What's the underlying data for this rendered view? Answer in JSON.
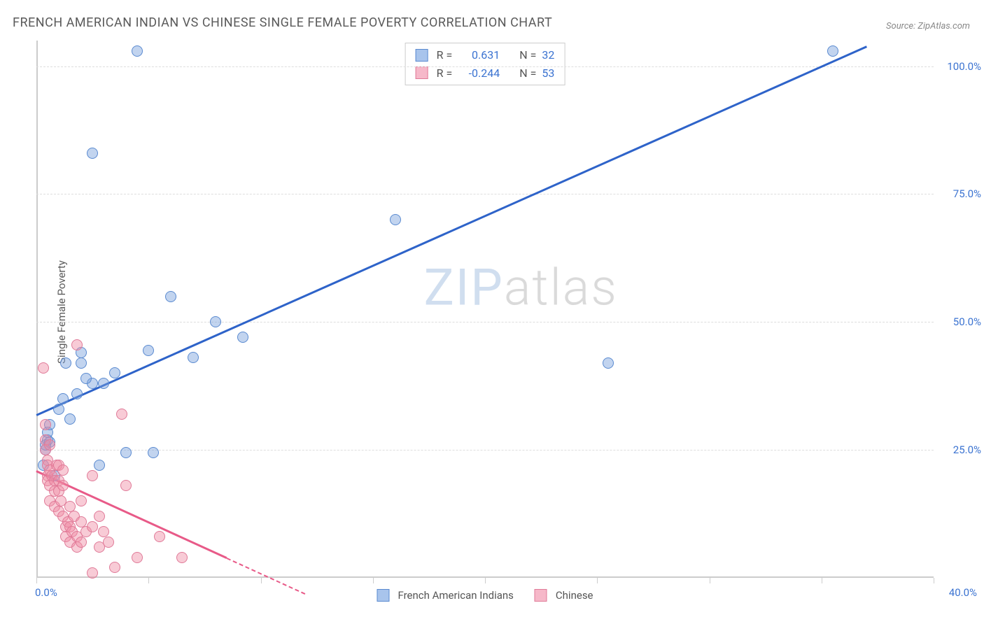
{
  "title": "FRENCH AMERICAN INDIAN VS CHINESE SINGLE FEMALE POVERTY CORRELATION CHART",
  "source": "Source: ZipAtlas.com",
  "ylabel": "Single Female Poverty",
  "watermark": {
    "zip": "ZIP",
    "atlas": "atlas"
  },
  "chart": {
    "type": "scatter",
    "background_color": "#ffffff",
    "axis_color": "#cccccc",
    "grid_color": "#dddddd",
    "xlim": [
      0,
      40
    ],
    "ylim": [
      0,
      105
    ],
    "xticks": [
      0,
      5,
      10,
      15,
      20,
      25,
      30,
      35,
      40
    ],
    "xtick_labels": {
      "left": "0.0%",
      "right": "40.0%"
    },
    "ytick_lines": [
      25,
      50,
      75,
      100
    ],
    "ytick_labels": [
      "25.0%",
      "50.0%",
      "75.0%",
      "100.0%"
    ],
    "tick_label_color": "#3b73d1",
    "tick_label_fontsize": 15,
    "marker_radius": 8,
    "marker_stroke_width": 1.5,
    "series": [
      {
        "name": "French American Indians",
        "fill_color": "rgba(120,160,220,0.45)",
        "stroke_color": "#5a8ad0",
        "swatch_fill": "#a8c4ec",
        "swatch_border": "#5a8ad0",
        "stats": {
          "R": "0.631",
          "N": "32"
        },
        "trend": {
          "x1": 0,
          "y1": 32,
          "x2": 37,
          "y2": 104,
          "color": "#2e63c9",
          "width": 2.5
        },
        "points": [
          [
            0.3,
            22
          ],
          [
            0.4,
            25
          ],
          [
            0.4,
            26
          ],
          [
            0.5,
            27
          ],
          [
            0.5,
            28.5
          ],
          [
            0.6,
            30
          ],
          [
            0.6,
            26.5
          ],
          [
            0.8,
            20
          ],
          [
            1.0,
            33
          ],
          [
            1.2,
            35
          ],
          [
            1.3,
            42
          ],
          [
            1.5,
            31
          ],
          [
            1.8,
            36
          ],
          [
            2.0,
            42
          ],
          [
            2.0,
            44
          ],
          [
            2.5,
            38
          ],
          [
            2.5,
            83
          ],
          [
            2.8,
            22
          ],
          [
            3.0,
            38
          ],
          [
            3.5,
            40
          ],
          [
            4.0,
            24.5
          ],
          [
            4.5,
            103
          ],
          [
            5.0,
            44.5
          ],
          [
            5.2,
            24.5
          ],
          [
            6.0,
            55
          ],
          [
            7.0,
            43
          ],
          [
            8.0,
            50
          ],
          [
            9.2,
            47
          ],
          [
            16.0,
            70
          ],
          [
            25.5,
            42
          ],
          [
            35.5,
            103
          ],
          [
            2.2,
            39
          ]
        ]
      },
      {
        "name": "Chinese",
        "fill_color": "rgba(240,140,165,0.45)",
        "stroke_color": "#e07a98",
        "swatch_fill": "#f6b8c9",
        "swatch_border": "#e07a98",
        "stats": {
          "R": "-0.244",
          "N": "53"
        },
        "trend": {
          "x1": 0,
          "y1": 21,
          "x2": 8.5,
          "y2": 4,
          "color": "#e85a88",
          "width": 2.5
        },
        "trend_dash": {
          "x1": 8.5,
          "y1": 4,
          "x2": 12,
          "y2": -3,
          "color": "#e85a88"
        },
        "points": [
          [
            0.3,
            41
          ],
          [
            0.4,
            30
          ],
          [
            0.4,
            27
          ],
          [
            0.4,
            25
          ],
          [
            0.5,
            23
          ],
          [
            0.5,
            22
          ],
          [
            0.5,
            20
          ],
          [
            0.5,
            19
          ],
          [
            0.6,
            26
          ],
          [
            0.6,
            21
          ],
          [
            0.6,
            18
          ],
          [
            0.6,
            15
          ],
          [
            0.7,
            20
          ],
          [
            0.8,
            19
          ],
          [
            0.8,
            17
          ],
          [
            0.8,
            14
          ],
          [
            0.9,
            22
          ],
          [
            1.0,
            22
          ],
          [
            1.0,
            19
          ],
          [
            1.0,
            17
          ],
          [
            1.0,
            13
          ],
          [
            1.1,
            15
          ],
          [
            1.2,
            21
          ],
          [
            1.2,
            18
          ],
          [
            1.2,
            12
          ],
          [
            1.3,
            10
          ],
          [
            1.3,
            8
          ],
          [
            1.4,
            11
          ],
          [
            1.5,
            14
          ],
          [
            1.5,
            10
          ],
          [
            1.5,
            7
          ],
          [
            1.6,
            9
          ],
          [
            1.7,
            12
          ],
          [
            1.8,
            8
          ],
          [
            1.8,
            6
          ],
          [
            1.8,
            45.5
          ],
          [
            2.0,
            15
          ],
          [
            2.0,
            11
          ],
          [
            2.0,
            7
          ],
          [
            2.2,
            9
          ],
          [
            2.5,
            20
          ],
          [
            2.5,
            10
          ],
          [
            2.5,
            1
          ],
          [
            2.8,
            6
          ],
          [
            2.8,
            12
          ],
          [
            3.0,
            9
          ],
          [
            3.2,
            7
          ],
          [
            3.5,
            2
          ],
          [
            3.8,
            32
          ],
          [
            4.0,
            18
          ],
          [
            4.5,
            4
          ],
          [
            5.5,
            8
          ],
          [
            6.5,
            4
          ]
        ]
      }
    ]
  },
  "legend_top": {
    "r_label": "R =",
    "n_label": "N ="
  },
  "legend_bottom": {
    "items": [
      "French American Indians",
      "Chinese"
    ]
  }
}
